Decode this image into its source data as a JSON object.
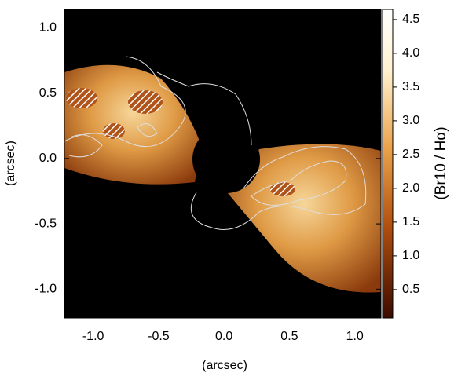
{
  "chart_data": {
    "type": "image",
    "xlabel": "(arcsec)",
    "ylabel": "(arcsec)",
    "colorbar_label": "(Br10 / Hα)",
    "xlim": [
      -1.22,
      1.2
    ],
    "ylim": [
      -1.22,
      1.14
    ],
    "xticks": [
      {
        "value": -1,
        "label": "-1.0"
      },
      {
        "value": -0.5,
        "label": "-0.5"
      },
      {
        "value": 0,
        "label": "0.0"
      },
      {
        "value": 0.5,
        "label": "0.5"
      },
      {
        "value": 1,
        "label": "1.0"
      }
    ],
    "yticks": [
      {
        "value": 1,
        "label": "1.0"
      },
      {
        "value": 0.5,
        "label": "0.5"
      },
      {
        "value": 0,
        "label": "0.0"
      },
      {
        "value": -0.5,
        "label": "-0.5"
      },
      {
        "value": -1,
        "label": "-1.0"
      }
    ],
    "clim": [
      0.08,
      4.65
    ],
    "cticks": [
      4.5,
      {
        "value": 4,
        "label": "4.0"
      },
      3.5,
      {
        "value": 3,
        "label": "3.0"
      },
      2.5,
      {
        "value": 2,
        "label": "2.0"
      },
      1.5,
      {
        "value": 1,
        "label": "1.0"
      },
      0.5
    ]
  }
}
